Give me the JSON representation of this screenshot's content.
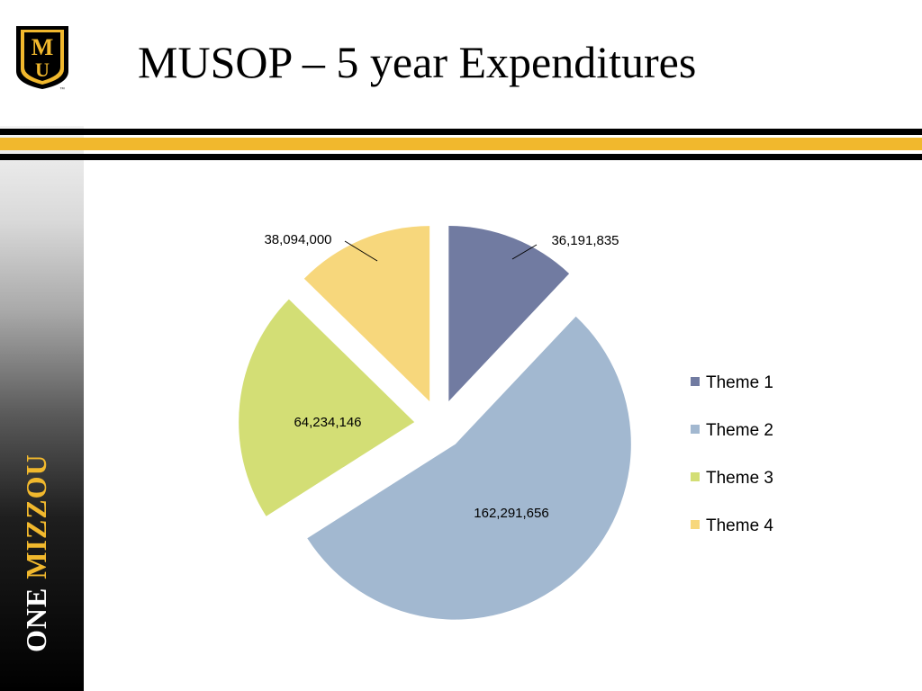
{
  "slide": {
    "title": "MUSOP – 5 year Expenditures",
    "brand_one": "ONE",
    "brand_mizzou": "MIZZOU",
    "logo_text": "MU",
    "trademark": "™"
  },
  "colors": {
    "gold": "#f1b82d",
    "black": "#000000"
  },
  "chart_data": {
    "type": "pie",
    "title": "",
    "categories": [
      "Theme 1",
      "Theme 2",
      "Theme 3",
      "Theme 4"
    ],
    "values": [
      36191835,
      162291656,
      64234146,
      38094000
    ],
    "data_labels": [
      "36,191,835",
      "162,291,656",
      "64,234,146",
      "38,094,000"
    ],
    "colors": [
      "#717ba1",
      "#a2b8d0",
      "#d3de75",
      "#f7d77c"
    ],
    "exploded": true,
    "legend_position": "right"
  }
}
